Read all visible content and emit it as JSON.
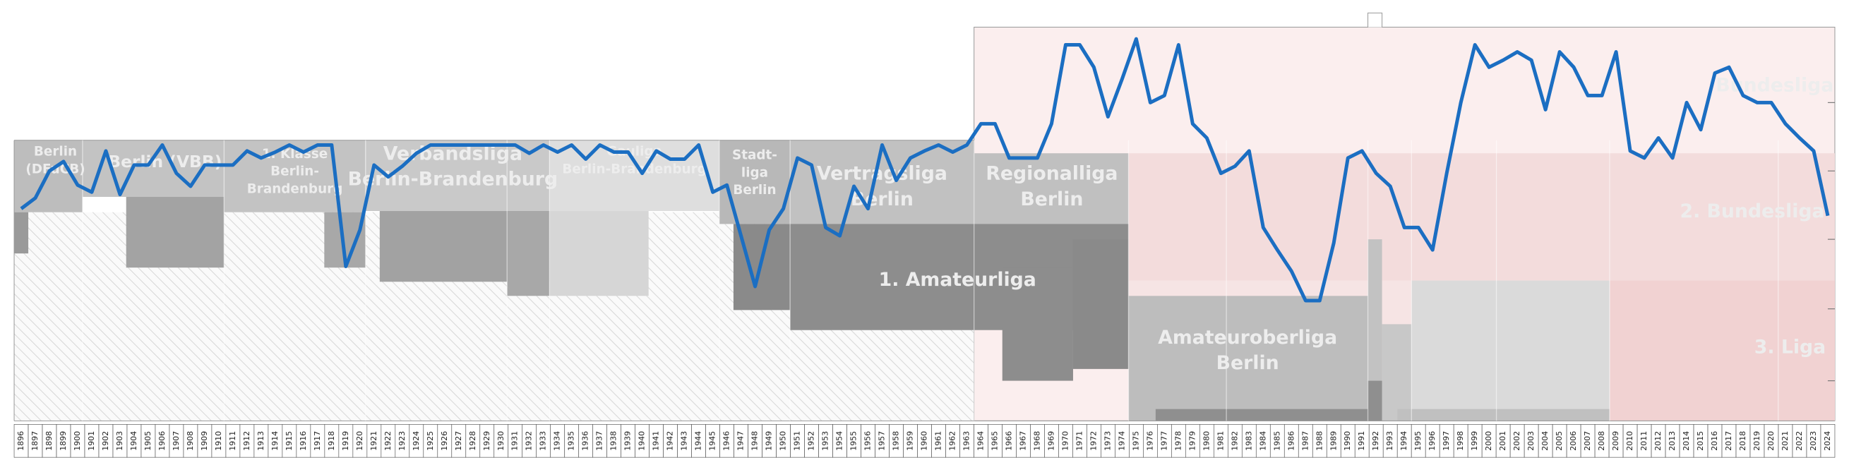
{
  "chart_data": {
    "type": "line",
    "x": [
      1896,
      1897,
      1898,
      1899,
      1900,
      1901,
      1902,
      1903,
      1904,
      1905,
      1906,
      1907,
      1908,
      1909,
      1910,
      1911,
      1912,
      1913,
      1914,
      1915,
      1916,
      1917,
      1918,
      1919,
      1920,
      1921,
      1922,
      1923,
      1924,
      1925,
      1926,
      1927,
      1928,
      1929,
      1930,
      1931,
      1932,
      1933,
      1934,
      1935,
      1936,
      1937,
      1938,
      1939,
      1940,
      1941,
      1942,
      1943,
      1944,
      1945,
      1946,
      1947,
      1948,
      1949,
      1950,
      1951,
      1952,
      1953,
      1954,
      1955,
      1956,
      1957,
      1958,
      1959,
      1960,
      1961,
      1962,
      1963,
      1964,
      1965,
      1966,
      1967,
      1968,
      1969,
      1970,
      1971,
      1972,
      1973,
      1974,
      1975,
      1976,
      1977,
      1978,
      1979,
      1980,
      1981,
      1982,
      1983,
      1984,
      1985,
      1986,
      1987,
      1988,
      1989,
      1990,
      1991,
      1992,
      1993,
      1994,
      1995,
      1996,
      1997,
      1998,
      1999,
      2000,
      2001,
      2002,
      2003,
      2004,
      2005,
      2006,
      2007,
      2008,
      2009,
      2010,
      2011,
      2012,
      2013,
      2014,
      2015,
      2016,
      2017,
      2018,
      2019,
      2020,
      2021,
      2022,
      2023,
      2024
    ],
    "values": [
      154,
      145,
      122,
      114,
      134,
      140,
      105,
      142,
      117,
      117,
      100,
      124,
      135,
      117,
      117,
      117,
      105,
      111,
      106,
      100,
      106,
      100,
      100,
      203,
      172,
      117,
      127,
      118,
      107,
      100,
      100,
      100,
      100,
      100,
      100,
      100,
      107,
      100,
      106,
      100,
      112,
      100,
      106,
      106,
      124,
      105,
      112,
      112,
      100,
      140,
      134,
      177,
      220,
      172,
      154,
      111,
      117,
      170,
      177,
      135,
      154,
      100,
      130,
      111,
      105,
      100,
      106,
      100,
      82,
      82,
      111,
      111,
      111,
      82,
      15,
      15,
      34,
      76,
      44,
      10,
      64,
      58,
      15,
      82,
      94,
      124,
      118,
      105,
      170,
      189,
      207,
      232,
      232,
      183,
      111,
      105,
      124,
      135,
      170,
      170,
      189,
      124,
      64,
      15,
      34,
      28,
      21,
      28,
      70,
      21,
      34,
      58,
      58,
      21,
      105,
      111,
      94,
      111,
      64,
      87,
      39,
      34,
      58,
      64,
      64,
      82,
      94,
      105,
      160
    ],
    "color": "#1b6ec2",
    "xlim": [
      1895.5,
      2024.5
    ],
    "ylim": [
      334,
      0
    ],
    "yticks": [
      64,
      122,
      180,
      239,
      300
    ],
    "annotations": [
      [
        "Bundesliga"
      ],
      [
        "2. Bundesliga"
      ],
      [
        "3. Liga"
      ],
      [
        "Berlin",
        "(DFuCB)"
      ],
      [
        "Berlin (VBB)"
      ],
      [
        "1. Klasse",
        "Berlin-",
        "Brandenburg"
      ],
      [
        "Verbandsliga",
        "Berlin-Brandenburg"
      ],
      [
        "Gauliga",
        "Berlin-Brandenburg"
      ],
      [
        "Stadt-",
        "liga",
        "Berlin"
      ],
      [
        "Vertragsliga",
        "Berlin"
      ],
      [
        "Regionalliga",
        "Berlin"
      ],
      [
        "1. Amateurliga"
      ],
      [
        "Amateuroberliga",
        "Berlin"
      ]
    ]
  }
}
